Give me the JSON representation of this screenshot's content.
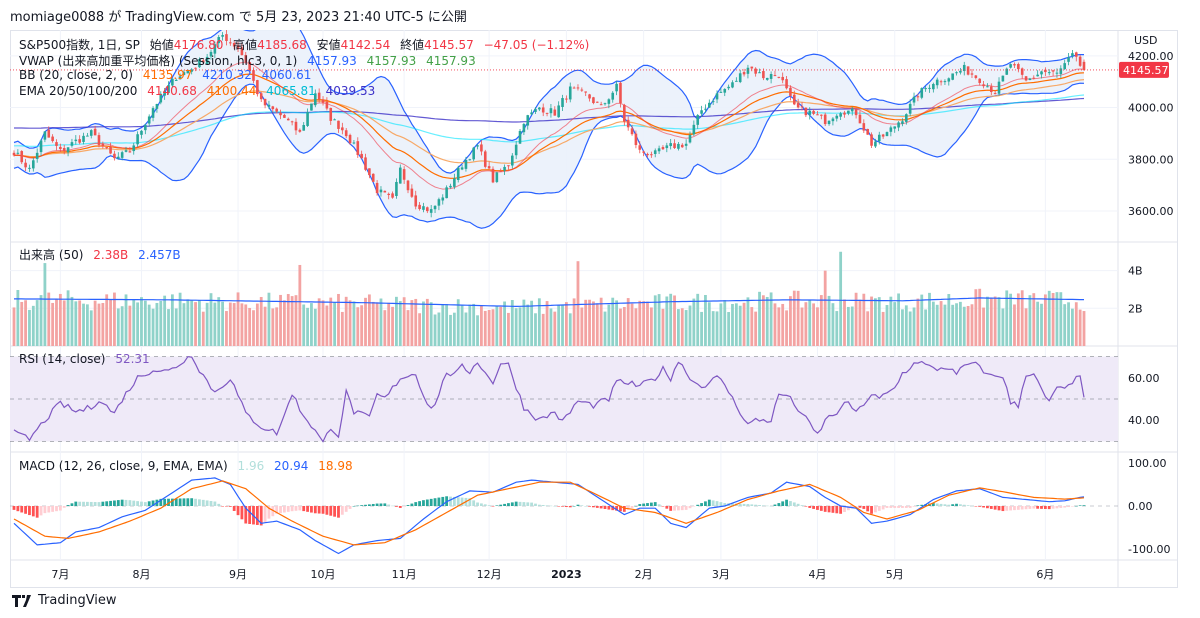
{
  "header": {
    "publish_line": "momiage0088 が TradingView.com で 5月 23, 2023 21:40 UTC-5 に公開"
  },
  "footer": {
    "logo_text": "TradingView"
  },
  "colors": {
    "up": "#26a69a",
    "down": "#ef5350",
    "vol_up": "#8fd2c9",
    "vol_down": "#f3a3a2",
    "bb_line": "#2962ff",
    "bb_fill": "#eaf1fb",
    "ema20": "#f23645",
    "ema50": "#ff6d00",
    "ema100": "#00e5ff",
    "ema200": "#3c31c8",
    "vwap": "#2962ff",
    "rsi": "#7e57c2",
    "rsi_band": "#efeaf8",
    "macd": "#2962ff",
    "signal": "#ff6d00",
    "hist_up_strong": "#26a69a",
    "hist_up_weak": "#b2dfdb",
    "hist_down_strong": "#ff5252",
    "hist_down_weak": "#ffcdd2",
    "last_price_bg": "#f23645"
  },
  "chart_data": [
    {
      "type": "candlestick",
      "id": "price",
      "title": "S&P500指数, 1日, SP",
      "ohlc_labels": {
        "open_label": "始値",
        "open": "4176.80",
        "high_label": "高値",
        "high": "4185.68",
        "low_label": "安値",
        "low": "4142.54",
        "close_label": "終値",
        "close": "4145.57",
        "change": "−47.05 (−1.12%)"
      },
      "currency": "USD",
      "ylim": [
        3480,
        4300
      ],
      "yticks": [
        "4200.00",
        "4000.00",
        "3800.00",
        "3600.00"
      ],
      "ytick_values": [
        4200,
        4000,
        3800,
        3600
      ],
      "last_price": "4145.57",
      "last_price_value": 4145.57,
      "indicators": {
        "vwap": {
          "label": "VWAP (出来高加重平均価格) (Session, hlc3, 0, 1)",
          "values": [
            "4157.93",
            "4157.93",
            "4157.93"
          ]
        },
        "bb": {
          "label": "BB (20, close, 2, 0)",
          "values": [
            "4135.97",
            "4210.32",
            "4060.61"
          ]
        },
        "ema": {
          "label": "EMA 20/50/100/200",
          "values": [
            "4140.68",
            "4100.44",
            "4065.81",
            "4039.53"
          ]
        }
      },
      "close_series_anchors": [
        [
          0,
          3830
        ],
        [
          4,
          3760
        ],
        [
          8,
          3900
        ],
        [
          12,
          3830
        ],
        [
          16,
          3870
        ],
        [
          20,
          3900
        ],
        [
          26,
          3800
        ],
        [
          30,
          3830
        ],
        [
          36,
          4000
        ],
        [
          42,
          4120
        ],
        [
          46,
          4150
        ],
        [
          50,
          4200
        ],
        [
          54,
          4280
        ],
        [
          58,
          4230
        ],
        [
          60,
          4180
        ],
        [
          64,
          4020
        ],
        [
          70,
          3960
        ],
        [
          74,
          3900
        ],
        [
          78,
          4060
        ],
        [
          82,
          3960
        ],
        [
          86,
          3900
        ],
        [
          90,
          3800
        ],
        [
          94,
          3680
        ],
        [
          98,
          3640
        ],
        [
          100,
          3760
        ],
        [
          104,
          3630
        ],
        [
          108,
          3600
        ],
        [
          112,
          3680
        ],
        [
          116,
          3780
        ],
        [
          120,
          3850
        ],
        [
          124,
          3720
        ],
        [
          128,
          3780
        ],
        [
          132,
          3950
        ],
        [
          136,
          4000
        ],
        [
          140,
          3980
        ],
        [
          144,
          4070
        ],
        [
          148,
          4050
        ],
        [
          152,
          4000
        ],
        [
          156,
          4080
        ],
        [
          158,
          3950
        ],
        [
          162,
          3830
        ],
        [
          166,
          3820
        ],
        [
          170,
          3850
        ],
        [
          174,
          3860
        ],
        [
          178,
          3990
        ],
        [
          182,
          4050
        ],
        [
          186,
          4090
        ],
        [
          190,
          4160
        ],
        [
          194,
          4120
        ],
        [
          198,
          4130
        ],
        [
          202,
          4000
        ],
        [
          206,
          3980
        ],
        [
          210,
          3950
        ],
        [
          214,
          3990
        ],
        [
          218,
          3980
        ],
        [
          222,
          3860
        ],
        [
          226,
          3900
        ],
        [
          230,
          3960
        ],
        [
          234,
          4050
        ],
        [
          238,
          4100
        ],
        [
          242,
          4120
        ],
        [
          246,
          4150
        ],
        [
          250,
          4110
        ],
        [
          254,
          4060
        ],
        [
          258,
          4170
        ],
        [
          262,
          4100
        ],
        [
          266,
          4140
        ],
        [
          270,
          4130
        ],
        [
          274,
          4200
        ],
        [
          277,
          4145
        ]
      ],
      "bars": 278
    },
    {
      "type": "bar",
      "id": "volume",
      "title": "出来高 (50)",
      "values_label": [
        "2.38B",
        "2.457B"
      ],
      "ylim": [
        0,
        5.2
      ],
      "yticks": [
        "4B",
        "2B"
      ],
      "ytick_values": [
        4,
        2
      ],
      "ma_anchors": [
        [
          0,
          2.5
        ],
        [
          40,
          2.45
        ],
        [
          90,
          2.3
        ],
        [
          130,
          2.1
        ],
        [
          170,
          2.35
        ],
        [
          200,
          2.45
        ],
        [
          230,
          2.4
        ],
        [
          250,
          2.55
        ],
        [
          277,
          2.46
        ]
      ],
      "spikes": [
        [
          8,
          4.4
        ],
        [
          74,
          4.3
        ],
        [
          146,
          4.5
        ],
        [
          210,
          4.0
        ],
        [
          214,
          5.0
        ]
      ]
    },
    {
      "type": "line",
      "id": "rsi",
      "title": "RSI (14, close)",
      "value": "52.31",
      "ylim": [
        25,
        75
      ],
      "yticks": [
        "60.00",
        "40.00"
      ],
      "ytick_values": [
        60,
        40
      ],
      "bands": [
        30,
        50,
        70
      ],
      "anchors": [
        [
          0,
          34
        ],
        [
          4,
          31
        ],
        [
          8,
          40
        ],
        [
          12,
          48
        ],
        [
          16,
          44
        ],
        [
          20,
          46
        ],
        [
          22,
          50
        ],
        [
          26,
          43
        ],
        [
          28,
          50
        ],
        [
          32,
          60
        ],
        [
          36,
          64
        ],
        [
          40,
          63
        ],
        [
          44,
          68
        ],
        [
          46,
          71
        ],
        [
          48,
          64
        ],
        [
          52,
          53
        ],
        [
          56,
          60
        ],
        [
          60,
          43
        ],
        [
          64,
          37
        ],
        [
          68,
          34
        ],
        [
          70,
          42
        ],
        [
          72,
          53
        ],
        [
          74,
          45
        ],
        [
          78,
          35
        ],
        [
          80,
          29
        ],
        [
          82,
          37
        ],
        [
          84,
          33
        ],
        [
          86,
          53
        ],
        [
          88,
          44
        ],
        [
          92,
          41
        ],
        [
          94,
          52
        ],
        [
          96,
          50
        ],
        [
          98,
          55
        ],
        [
          100,
          60
        ],
        [
          104,
          62
        ],
        [
          106,
          52
        ],
        [
          108,
          45
        ],
        [
          110,
          52
        ],
        [
          112,
          63
        ],
        [
          114,
          61
        ],
        [
          116,
          65
        ],
        [
          118,
          63
        ],
        [
          120,
          68
        ],
        [
          122,
          62
        ],
        [
          124,
          58
        ],
        [
          126,
          67
        ],
        [
          128,
          66
        ],
        [
          132,
          46
        ],
        [
          136,
          40
        ],
        [
          140,
          44
        ],
        [
          142,
          39
        ],
        [
          146,
          49
        ],
        [
          150,
          47
        ],
        [
          154,
          50
        ],
        [
          156,
          58
        ],
        [
          158,
          58
        ],
        [
          162,
          56
        ],
        [
          166,
          60
        ],
        [
          168,
          64
        ],
        [
          170,
          60
        ],
        [
          172,
          68
        ],
        [
          176,
          58
        ],
        [
          178,
          56
        ],
        [
          182,
          60
        ],
        [
          184,
          57
        ],
        [
          186,
          50
        ],
        [
          188,
          44
        ],
        [
          190,
          38
        ],
        [
          192,
          40
        ],
        [
          196,
          40
        ],
        [
          198,
          52
        ],
        [
          200,
          52
        ],
        [
          204,
          43
        ],
        [
          208,
          33
        ],
        [
          210,
          40
        ],
        [
          214,
          45
        ],
        [
          216,
          49
        ],
        [
          218,
          43
        ],
        [
          220,
          48
        ],
        [
          222,
          52
        ],
        [
          224,
          50
        ],
        [
          228,
          55
        ],
        [
          230,
          62
        ],
        [
          234,
          68
        ],
        [
          238,
          64
        ],
        [
          242,
          65
        ],
        [
          244,
          61
        ],
        [
          246,
          66
        ],
        [
          250,
          66
        ],
        [
          252,
          61
        ],
        [
          256,
          61
        ],
        [
          258,
          48
        ],
        [
          260,
          47
        ],
        [
          262,
          62
        ],
        [
          264,
          62
        ],
        [
          266,
          54
        ],
        [
          268,
          48
        ],
        [
          270,
          56
        ],
        [
          272,
          54
        ],
        [
          274,
          57
        ],
        [
          276,
          62
        ],
        [
          277,
          52
        ]
      ]
    },
    {
      "type": "line",
      "id": "macd",
      "title": "MACD (12, 26, close, 9, EMA, EMA)",
      "values_label": [
        "1.96",
        "20.94",
        "18.98"
      ],
      "ylim": [
        -125,
        125
      ],
      "yticks": [
        "100.00",
        "0.00",
        "-100.00"
      ],
      "ytick_values": [
        100,
        0,
        -100
      ],
      "macd_anchors": [
        [
          0,
          -40
        ],
        [
          6,
          -90
        ],
        [
          12,
          -85
        ],
        [
          16,
          -60
        ],
        [
          22,
          -50
        ],
        [
          28,
          -25
        ],
        [
          34,
          -10
        ],
        [
          40,
          25
        ],
        [
          46,
          60
        ],
        [
          52,
          65
        ],
        [
          56,
          50
        ],
        [
          60,
          -5
        ],
        [
          64,
          -40
        ],
        [
          68,
          -35
        ],
        [
          74,
          -55
        ],
        [
          78,
          -80
        ],
        [
          84,
          -110
        ],
        [
          88,
          -90
        ],
        [
          94,
          -80
        ],
        [
          100,
          -75
        ],
        [
          106,
          -30
        ],
        [
          112,
          10
        ],
        [
          118,
          35
        ],
        [
          124,
          32
        ],
        [
          130,
          55
        ],
        [
          134,
          60
        ],
        [
          140,
          55
        ],
        [
          146,
          50
        ],
        [
          152,
          15
        ],
        [
          158,
          -20
        ],
        [
          162,
          -5
        ],
        [
          166,
          -5
        ],
        [
          170,
          -40
        ],
        [
          174,
          -50
        ],
        [
          180,
          -5
        ],
        [
          184,
          0
        ],
        [
          190,
          20
        ],
        [
          196,
          30
        ],
        [
          200,
          55
        ],
        [
          206,
          45
        ],
        [
          210,
          20
        ],
        [
          214,
          0
        ],
        [
          218,
          -5
        ],
        [
          222,
          -40
        ],
        [
          226,
          -35
        ],
        [
          232,
          -20
        ],
        [
          238,
          15
        ],
        [
          244,
          35
        ],
        [
          250,
          40
        ],
        [
          256,
          20
        ],
        [
          262,
          15
        ],
        [
          268,
          10
        ],
        [
          272,
          12
        ],
        [
          276,
          20
        ],
        [
          277,
          21
        ]
      ],
      "signal_anchors": [
        [
          0,
          -30
        ],
        [
          8,
          -70
        ],
        [
          14,
          -75
        ],
        [
          22,
          -60
        ],
        [
          30,
          -35
        ],
        [
          38,
          -5
        ],
        [
          46,
          40
        ],
        [
          54,
          58
        ],
        [
          60,
          40
        ],
        [
          66,
          -5
        ],
        [
          72,
          -35
        ],
        [
          80,
          -70
        ],
        [
          88,
          -90
        ],
        [
          96,
          -85
        ],
        [
          104,
          -55
        ],
        [
          112,
          -15
        ],
        [
          120,
          25
        ],
        [
          128,
          40
        ],
        [
          136,
          55
        ],
        [
          144,
          55
        ],
        [
          150,
          30
        ],
        [
          158,
          -5
        ],
        [
          166,
          -15
        ],
        [
          174,
          -40
        ],
        [
          182,
          -15
        ],
        [
          190,
          15
        ],
        [
          198,
          35
        ],
        [
          206,
          50
        ],
        [
          214,
          20
        ],
        [
          220,
          -15
        ],
        [
          226,
          -30
        ],
        [
          234,
          -10
        ],
        [
          242,
          25
        ],
        [
          250,
          42
        ],
        [
          256,
          33
        ],
        [
          264,
          20
        ],
        [
          272,
          16
        ],
        [
          277,
          19
        ]
      ]
    }
  ],
  "x_axis": {
    "labels": [
      "7月",
      "8月",
      "9月",
      "10月",
      "11月",
      "12月",
      "2023",
      "2月",
      "3月",
      "4月",
      "5月",
      "6月"
    ],
    "label_bar_index": [
      12,
      33,
      58,
      80,
      101,
      123,
      143,
      163,
      183,
      208,
      228,
      267
    ]
  }
}
